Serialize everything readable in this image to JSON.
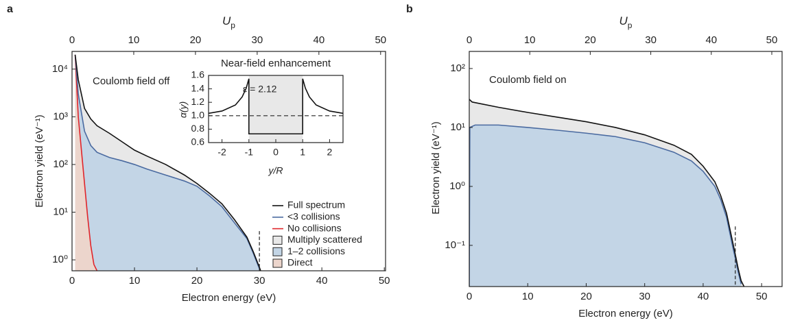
{
  "chart_data": [
    {
      "type": "line",
      "panel": "a",
      "log_y": true,
      "xlabel": "Electron energy (eV)",
      "ylabel": "Electron yield (eV⁻¹)",
      "x2label": {
        "main": "U",
        "sub": "p"
      },
      "xlim": [
        0,
        50.2
      ],
      "xticks": [
        0,
        10,
        20,
        30,
        40,
        50
      ],
      "x2lim": [
        0,
        50.8
      ],
      "x2ticks": [
        0,
        10,
        20,
        30,
        40,
        50
      ],
      "ylim": [
        0.59,
        23500
      ],
      "yticks": [
        {
          "value": 1,
          "label": "10⁰"
        },
        {
          "value": 10,
          "label": "10¹"
        },
        {
          "value": 100,
          "label": "10²"
        },
        {
          "value": 1000,
          "label": "10³"
        },
        {
          "value": 10000,
          "label": "10⁴"
        }
      ],
      "annotations": [
        "Coulomb field off"
      ],
      "series": [
        {
          "name": "Full spectrum",
          "color": "#111111",
          "x": [
            0.5,
            1,
            2,
            3,
            4,
            6,
            8,
            10,
            12,
            15,
            18,
            20,
            22,
            24,
            26,
            28,
            29,
            30,
            31
          ],
          "values": [
            20000,
            6000,
            1500,
            900,
            650,
            450,
            300,
            200,
            150,
            100,
            60,
            40,
            25,
            15,
            7,
            3,
            1.5,
            0.7,
            0.3
          ]
        },
        {
          "name": "<3 collisions",
          "color": "#4a6aa0",
          "x": [
            0.5,
            1,
            2,
            3,
            4,
            6,
            8,
            10,
            12,
            15,
            18,
            20,
            22,
            24,
            26,
            28,
            29,
            30,
            31
          ],
          "values": [
            20000,
            3000,
            500,
            250,
            180,
            140,
            120,
            100,
            80,
            60,
            45,
            35,
            22,
            13,
            6,
            2.8,
            1.4,
            0.65,
            0.3
          ]
        },
        {
          "name": "No collisions",
          "color": "#e0242a",
          "x": [
            0.5,
            1,
            1.5,
            2,
            2.5,
            3,
            3.5,
            4
          ],
          "values": [
            20000,
            1000,
            200,
            40,
            8,
            2,
            0.8,
            0.59
          ]
        }
      ],
      "areas": [
        {
          "name": "Multiply scattered",
          "color": "#e8e8e8",
          "under": 0
        },
        {
          "name": "1–2 collisions",
          "color": "#c3d5e6",
          "under": 1
        },
        {
          "name": "Direct",
          "color": "#ecd5cc",
          "under": 2
        }
      ],
      "vlines": [
        {
          "x": 30,
          "y_from": 4
        }
      ]
    },
    {
      "type": "line",
      "title": "Near-field enhancement",
      "log_y": false,
      "xlabel": "y/R",
      "ylabel": "α(y)",
      "xlim": [
        -2.5,
        2.5
      ],
      "xticks": [
        -2,
        -1,
        0,
        1,
        2
      ],
      "ylim": [
        0.6,
        1.6
      ],
      "yticks": [
        0.6,
        0.8,
        {
          "value": 1,
          "label": "1.0"
        },
        1.2,
        1.4,
        1.6
      ],
      "annotations": [
        "ε = 2.12"
      ],
      "shade": [
        -1,
        1
      ],
      "reference_y": 1,
      "series": [
        {
          "color": "#111111",
          "x": [
            -2.5,
            -2,
            -1.5,
            -1.25,
            -1.1,
            -1,
            -1,
            1,
            1,
            1.1,
            1.25,
            1.5,
            2,
            2.5
          ],
          "values": [
            1.035,
            1.07,
            1.16,
            1.28,
            1.41,
            1.55,
            0.73,
            0.73,
            1.55,
            1.41,
            1.28,
            1.16,
            1.07,
            1.035
          ]
        }
      ]
    },
    {
      "type": "line",
      "panel": "b",
      "log_y": true,
      "xlabel": "Electron energy (eV)",
      "ylabel": "Electron yield (eV⁻¹)",
      "x2label": {
        "main": "U",
        "sub": "p"
      },
      "xlim": [
        0,
        53.5
      ],
      "xticks": [
        0,
        10,
        20,
        30,
        40,
        50
      ],
      "x2lim": [
        0,
        51.7
      ],
      "x2ticks": [
        0,
        10,
        20,
        30,
        40,
        50
      ],
      "ylim": [
        0.02,
        195
      ],
      "yticks": [
        {
          "value": 0.1,
          "label": "10⁻¹"
        },
        {
          "value": 1,
          "label": "10⁰"
        },
        {
          "value": 10,
          "label": "10¹"
        },
        {
          "value": 100,
          "label": "10²"
        }
      ],
      "annotations": [
        "Coulomb field on"
      ],
      "series": [
        {
          "color": "#111111",
          "x": [
            0,
            0.5,
            5,
            10,
            15,
            20,
            25,
            30,
            35,
            38,
            40,
            42,
            43,
            44,
            45,
            45.5,
            46,
            46.5,
            47
          ],
          "values": [
            30,
            27,
            22,
            18,
            15,
            12.5,
            10,
            7.5,
            5,
            3.5,
            2.2,
            1.2,
            0.7,
            0.35,
            0.12,
            0.07,
            0.04,
            0.025,
            0.02
          ]
        },
        {
          "color": "#4a6aa0",
          "x": [
            0,
            0.1,
            1,
            5,
            10,
            15,
            20,
            25,
            30,
            35,
            38,
            40,
            42,
            43,
            44,
            45,
            45.5,
            46,
            46.5
          ],
          "values": [
            0.02,
            10,
            11,
            11,
            10,
            9,
            8,
            7,
            5.5,
            3.8,
            2.7,
            1.8,
            1,
            0.6,
            0.3,
            0.1,
            0.06,
            0.035,
            0.022
          ]
        }
      ],
      "areas": [
        {
          "color": "#e8e8e8",
          "under": 0
        },
        {
          "color": "#c3d5e6",
          "under": 1
        }
      ],
      "vlines": [
        {
          "x": 45.5,
          "y_from": 0.21
        }
      ]
    }
  ]
}
